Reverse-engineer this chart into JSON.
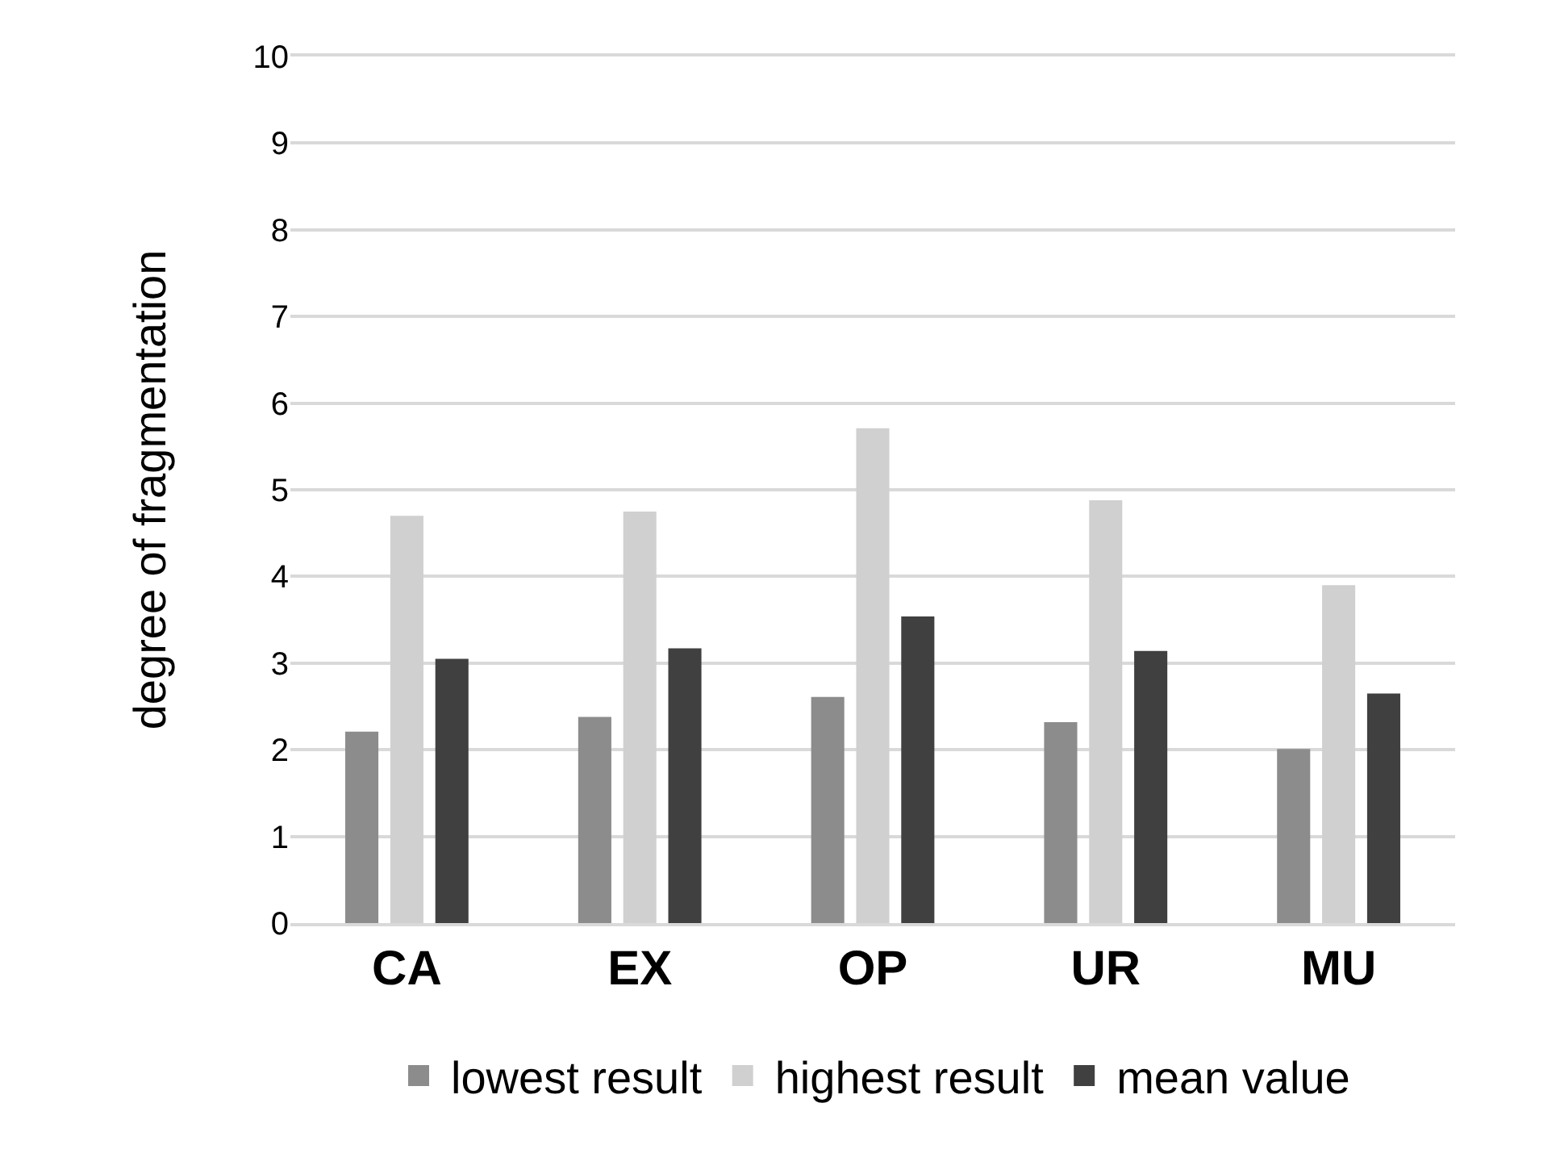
{
  "chart_data": {
    "type": "bar",
    "ylabel": "degree of fragmentation",
    "categories": [
      "CA",
      "EX",
      "OP",
      "UR",
      "MU"
    ],
    "series": [
      {
        "name": "lowest result",
        "color": "#8c8c8c",
        "values": [
          2.2,
          2.37,
          2.6,
          2.31,
          2.0
        ]
      },
      {
        "name": "highest result",
        "color": "#d0d0d0",
        "values": [
          4.69,
          4.74,
          5.7,
          4.87,
          3.89
        ]
      },
      {
        "name": "mean value",
        "color": "#404040",
        "values": [
          3.04,
          3.16,
          3.53,
          3.13,
          2.64
        ]
      }
    ],
    "ylim": [
      0,
      10
    ],
    "yticks": [
      0,
      1,
      2,
      3,
      4,
      5,
      6,
      7,
      8,
      9,
      10
    ],
    "grid": "y",
    "legend": "bottom"
  }
}
